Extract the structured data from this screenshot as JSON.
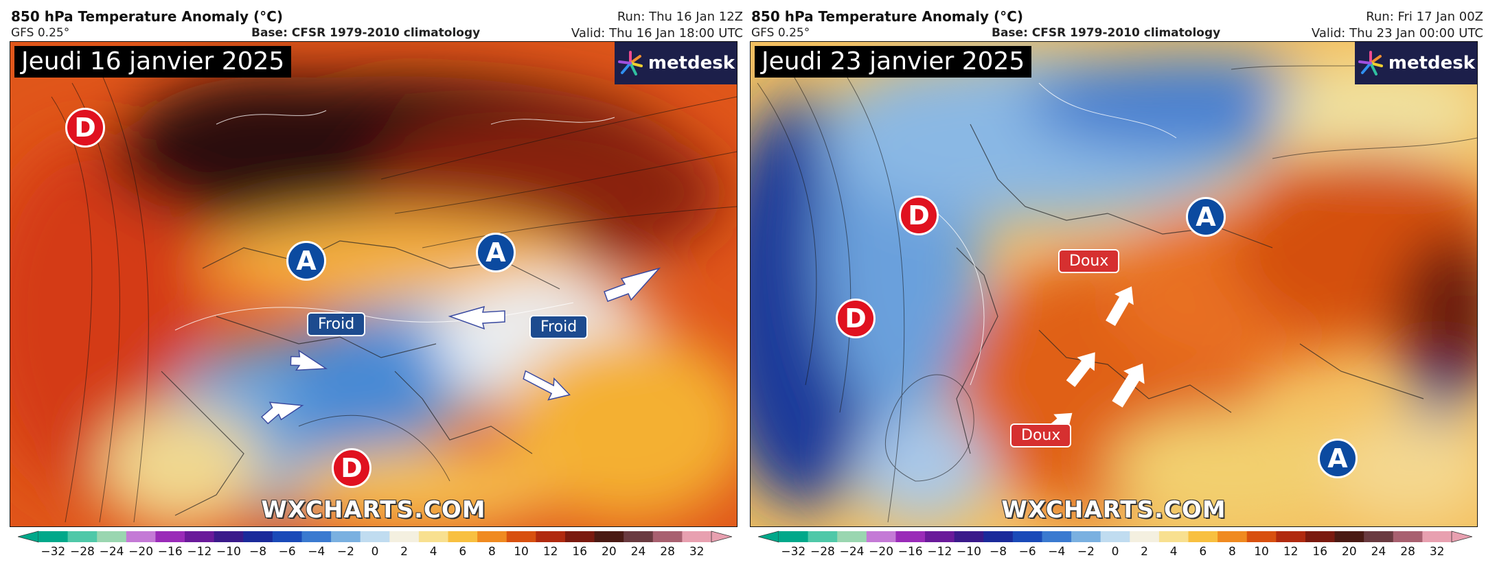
{
  "panels": [
    {
      "title": "850 hPa Temperature Anomaly (°C)",
      "model": "GFS 0.25°",
      "base": "Base: CFSR 1979-2010 climatology",
      "run": "Run: Thu 16 Jan 12Z",
      "valid": "Valid: Thu 16 Jan 18:00 UTC",
      "date_label": "Jeudi 16 janvier 2025",
      "logo": "metdesk",
      "watermark": "WXCHARTS.COM",
      "symbols": [
        {
          "text": "D",
          "kind": "low"
        },
        {
          "text": "A",
          "kind": "high"
        },
        {
          "text": "A",
          "kind": "high"
        },
        {
          "text": "D",
          "kind": "low"
        }
      ],
      "tags": [
        {
          "text": "Froid",
          "kind": "cold"
        },
        {
          "text": "Froid",
          "kind": "cold"
        }
      ]
    },
    {
      "title": "850 hPa Temperature Anomaly (°C)",
      "model": "GFS 0.25°",
      "base": "Base: CFSR 1979-2010 climatology",
      "run": "Run: Fri 17 Jan 00Z",
      "valid": "Valid: Thu 23 Jan 00:00 UTC",
      "date_label": "Jeudi 23 janvier 2025",
      "logo": "metdesk",
      "watermark": "WXCHARTS.COM",
      "symbols": [
        {
          "text": "D",
          "kind": "low"
        },
        {
          "text": "D",
          "kind": "low"
        },
        {
          "text": "A",
          "kind": "high"
        },
        {
          "text": "A",
          "kind": "high"
        }
      ],
      "tags": [
        {
          "text": "Doux",
          "kind": "warm"
        },
        {
          "text": "Doux",
          "kind": "warm"
        }
      ]
    }
  ],
  "colorbar": {
    "ticks": [
      "−32",
      "−28",
      "−24",
      "−20",
      "−16",
      "−12",
      "−10",
      "−8",
      "−6",
      "−4",
      "−2",
      "0",
      "2",
      "4",
      "6",
      "8",
      "10",
      "12",
      "16",
      "20",
      "24",
      "28",
      "32"
    ],
    "colors": [
      "#00a88a",
      "#4fc8a8",
      "#9ad6b0",
      "#c47ad6",
      "#9a2bb8",
      "#6a1a9a",
      "#3a1a8a",
      "#1a2a9a",
      "#1a4ab8",
      "#3a7ad0",
      "#7ab0e0",
      "#c0dcf0",
      "#f4f0e0",
      "#f8e090",
      "#f8c040",
      "#f08a20",
      "#d85010",
      "#b02a10",
      "#7a1a10",
      "#4a1a14",
      "#6a3a40",
      "#a86070",
      "#e8a0b0"
    ]
  }
}
